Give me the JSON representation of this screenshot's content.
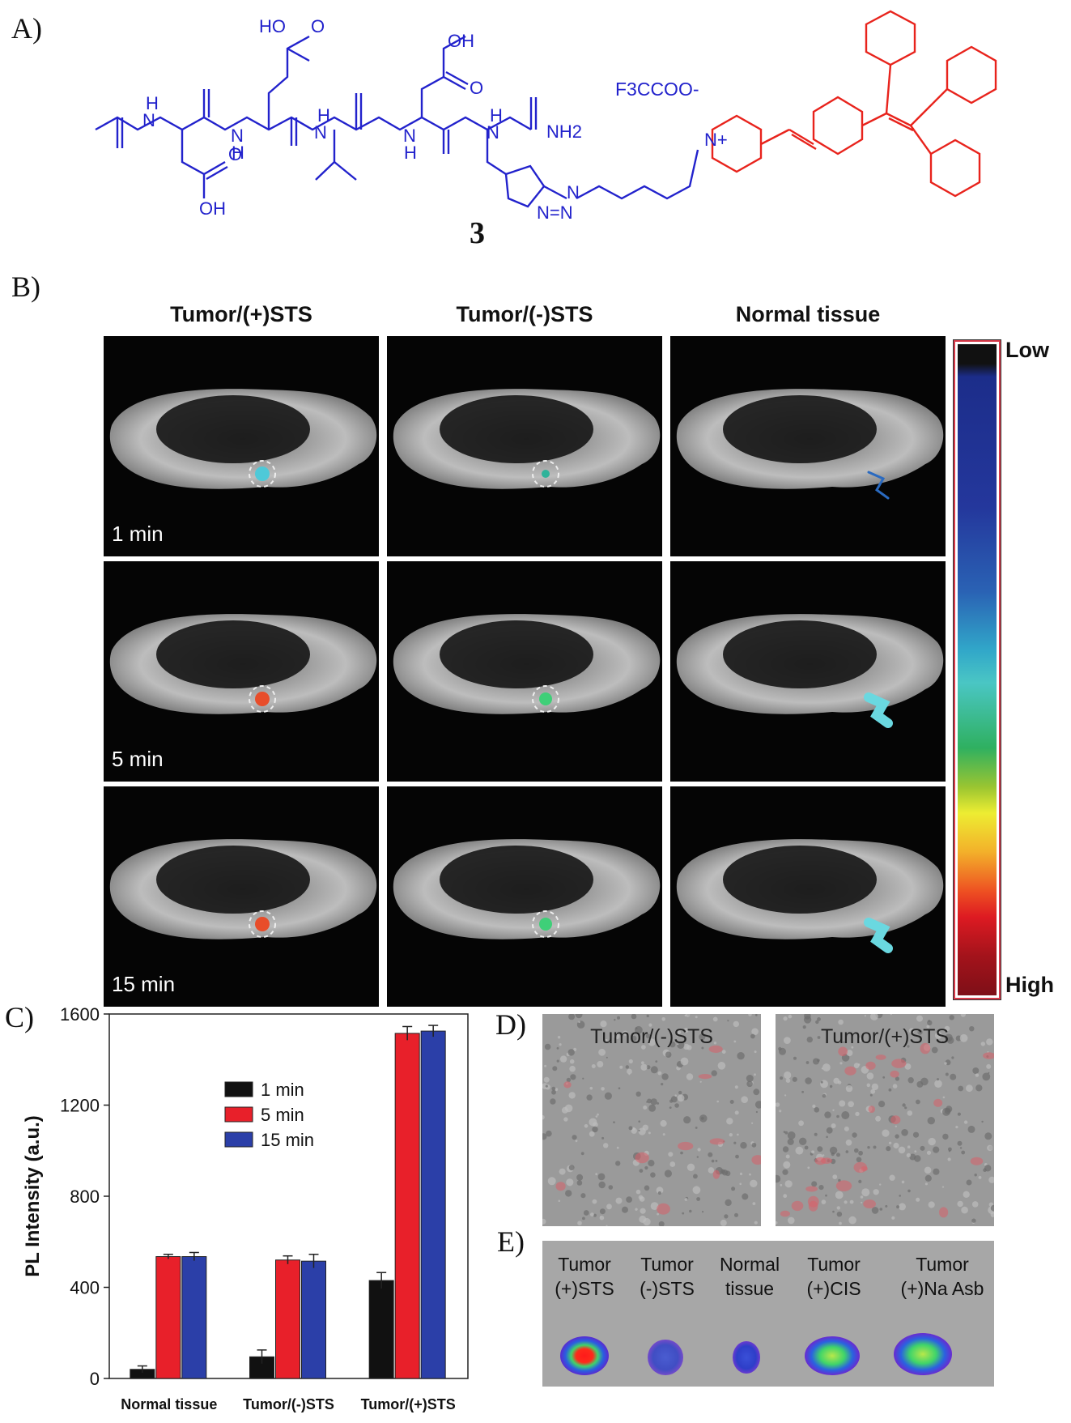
{
  "panel_labels": {
    "a": "A)",
    "b": "B)",
    "c": "C)",
    "d": "D)",
    "e": "E)"
  },
  "structure": {
    "compound_number": "3",
    "counterion": "F3CCOO-",
    "groups": {
      "cooh_top1": "HO",
      "o_top1": "O",
      "cooh_top2": "OH",
      "o_top2": "O",
      "cooh_bottom": "OH",
      "o_bottom": "O",
      "nh2": "NH2",
      "nplus": "N+",
      "triazole_n1": "N",
      "triazole_n2": "N=N"
    },
    "colors": {
      "peptide": "#2222cc",
      "fluorophore": "#e8231c"
    }
  },
  "imaging": {
    "columns": [
      "Tumor/(+)STS",
      "Tumor/(-)STS",
      "Normal tissue"
    ],
    "rows": [
      "1 min",
      "5 min",
      "15 min"
    ],
    "colorbar": {
      "low": "Low",
      "high": "High"
    }
  },
  "chart_data": {
    "type": "bar",
    "categories": [
      "Normal tissue",
      "Tumor/(-)STS",
      "Tumor/(+)STS"
    ],
    "series": [
      {
        "name": "1 min",
        "color": "#111111",
        "values": [
          40,
          95,
          430
        ],
        "errors": [
          15,
          30,
          35
        ]
      },
      {
        "name": "5 min",
        "color": "#e8202a",
        "values": [
          535,
          520,
          1515
        ],
        "errors": [
          10,
          18,
          30
        ]
      },
      {
        "name": "15 min",
        "color": "#2b3fa8",
        "values": [
          535,
          515,
          1525
        ],
        "errors": [
          18,
          30,
          25
        ]
      }
    ],
    "ylabel": "PL Intensity (a.u.)",
    "xlabel": "",
    "ylim": [
      0,
      1600
    ],
    "yticks": [
      0,
      400,
      800,
      1200,
      1600
    ],
    "legend_position": "top-left-inside"
  },
  "micrographs": [
    "Tumor/(-)STS",
    "Tumor/(+)STS"
  ],
  "organs": [
    {
      "line1": "Tumor",
      "line2": "(+)STS"
    },
    {
      "line1": "Tumor",
      "line2": "(-)STS"
    },
    {
      "line1": "Normal",
      "line2": "tissue"
    },
    {
      "line1": "Tumor",
      "line2": "(+)CIS"
    },
    {
      "line1": "Tumor",
      "line2": "(+)Na Asb"
    }
  ]
}
